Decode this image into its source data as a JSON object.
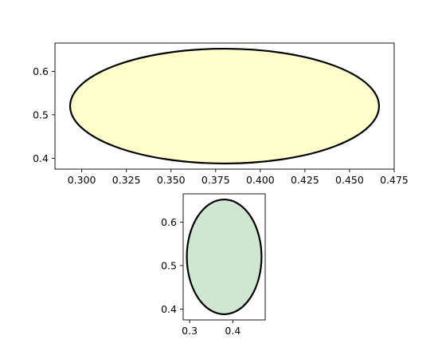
{
  "chart_data": [
    {
      "type": "scatter",
      "title": "",
      "xlabel": "",
      "ylabel": "",
      "xlim": [
        0.285,
        0.475
      ],
      "ylim": [
        0.375,
        0.665
      ],
      "x_ticks": [
        0.3,
        0.325,
        0.35,
        0.375,
        0.4,
        0.425,
        0.45,
        0.475
      ],
      "x_tick_labels": [
        "0.300",
        "0.325",
        "0.350",
        "0.375",
        "0.400",
        "0.425",
        "0.450",
        "0.475"
      ],
      "y_ticks": [
        0.4,
        0.5,
        0.6
      ],
      "y_tick_labels": [
        "0.4",
        "0.5",
        "0.6"
      ],
      "grid": false,
      "shape": {
        "kind": "ellipse",
        "center": [
          0.38,
          0.52
        ],
        "bbox_x": [
          0.2935,
          0.4665
        ],
        "bbox_y": [
          0.388,
          0.652
        ],
        "fill": "#ffffcc",
        "edge": "#000000"
      }
    },
    {
      "type": "scatter",
      "title": "",
      "xlabel": "",
      "ylabel": "",
      "xlim": [
        0.285,
        0.475
      ],
      "ylim": [
        0.375,
        0.665
      ],
      "x_ticks": [
        0.3,
        0.4
      ],
      "x_tick_labels": [
        "0.3",
        "0.4"
      ],
      "y_ticks": [
        0.4,
        0.5,
        0.6
      ],
      "y_tick_labels": [
        "0.4",
        "0.5",
        "0.6"
      ],
      "grid": false,
      "shape": {
        "kind": "ellipse",
        "center": [
          0.38,
          0.52
        ],
        "bbox_x": [
          0.2935,
          0.4665
        ],
        "bbox_y": [
          0.388,
          0.652
        ],
        "fill": "#cfe6d0",
        "edge": "#000000"
      }
    }
  ]
}
